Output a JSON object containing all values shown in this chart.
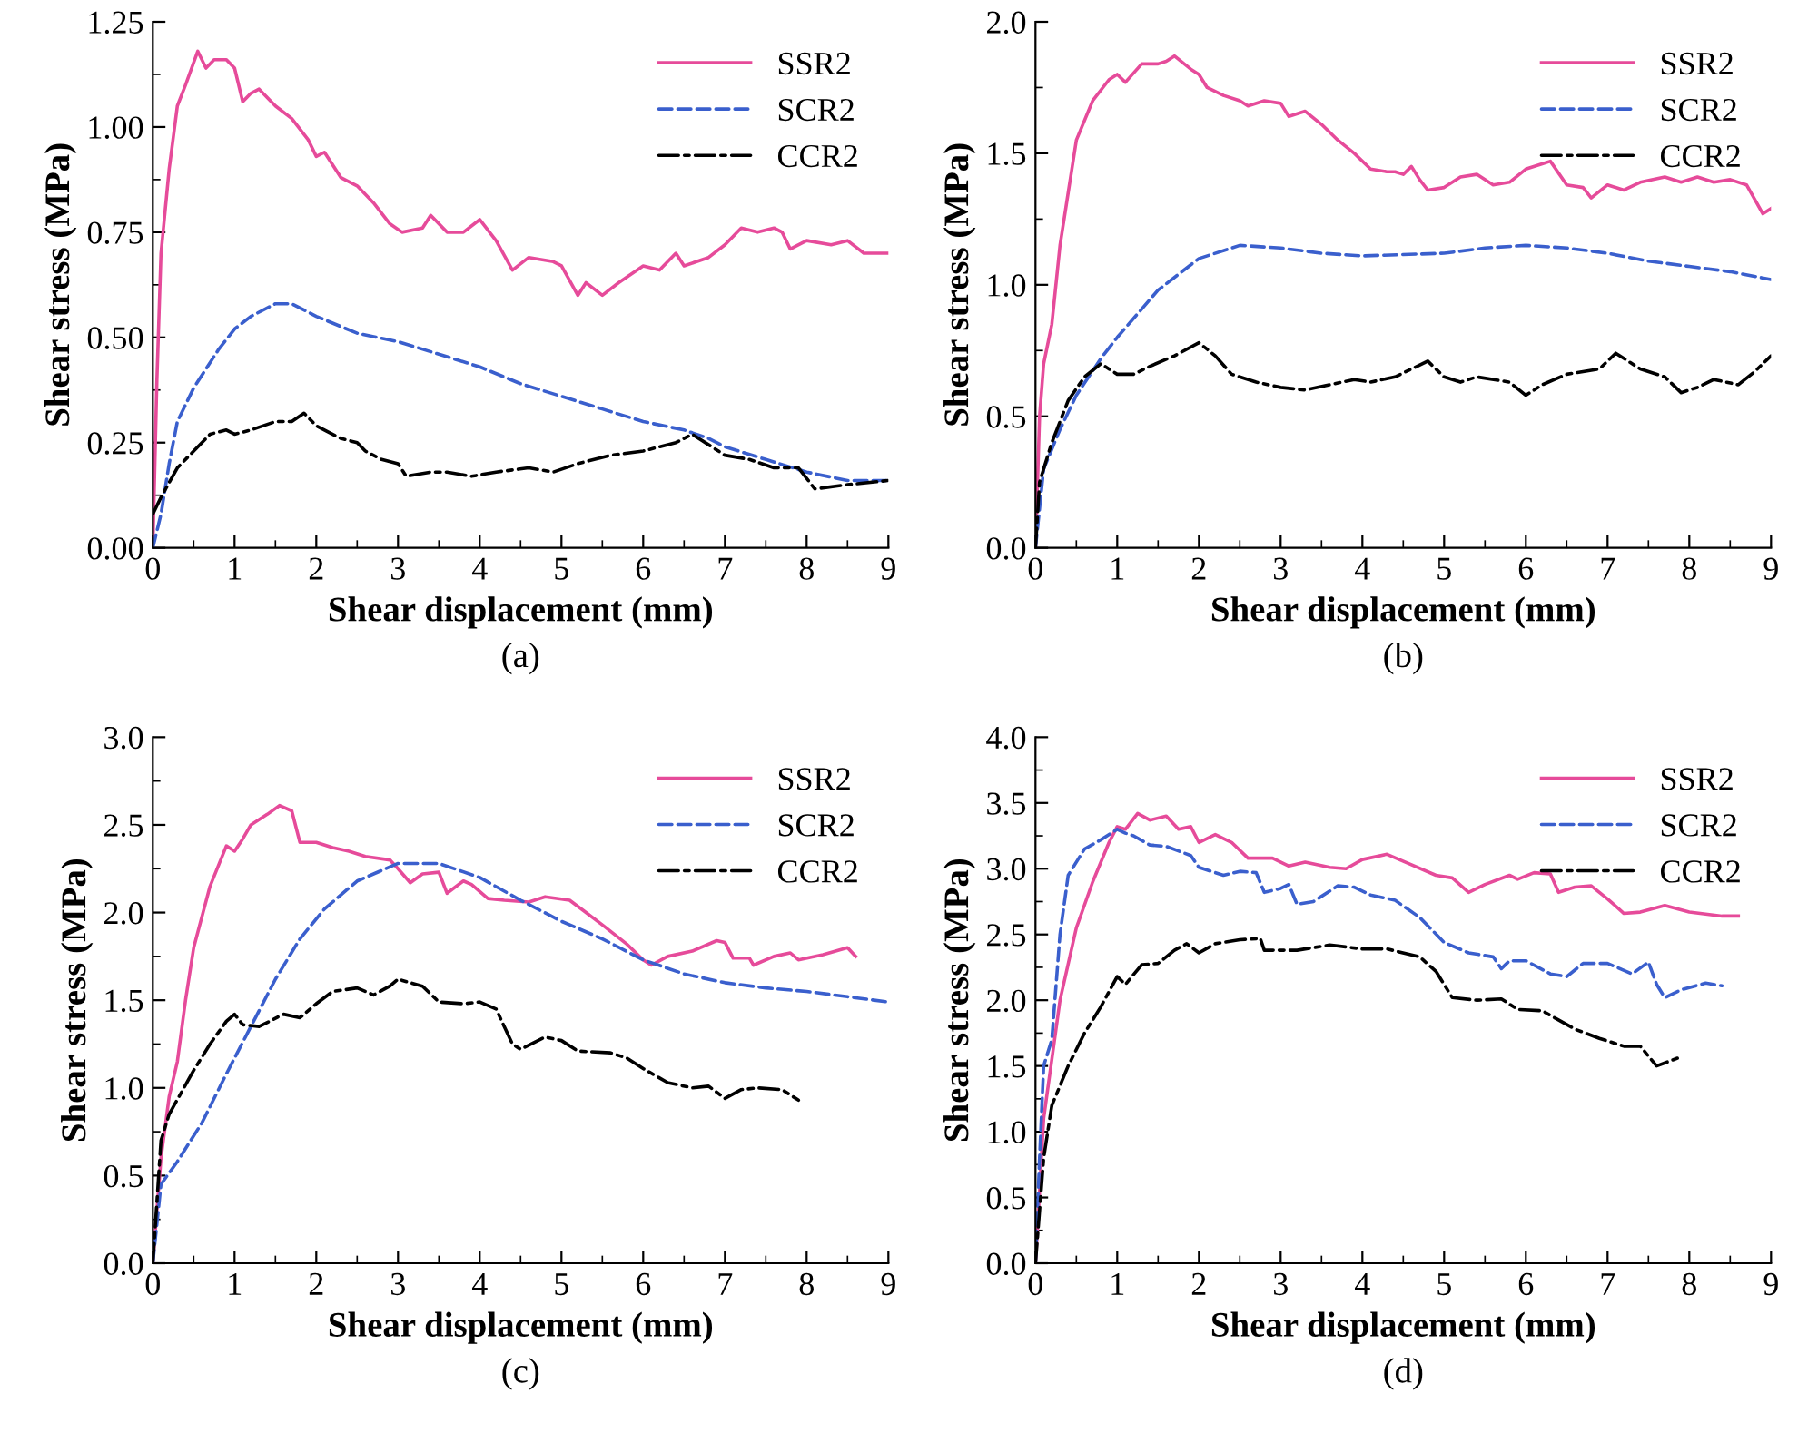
{
  "chart_data": [
    {
      "type": "line",
      "xlabel": "Shear displacement (mm)",
      "ylabel": "Shear stress (MPa)",
      "annotations": [
        "(a)"
      ],
      "legend": "top right",
      "grid": false,
      "xlim": [
        0,
        9
      ],
      "xticks": [
        0,
        1,
        2,
        3,
        4,
        5,
        6,
        7,
        8,
        9
      ],
      "ylim": [
        0,
        1.25
      ],
      "yticks": [
        {
          "value": 0,
          "label": "0.00"
        },
        {
          "value": 0.25,
          "label": "0.25"
        },
        {
          "value": 0.5,
          "label": "0.50"
        },
        {
          "value": 0.75,
          "label": "0.75"
        },
        {
          "value": 1.0,
          "label": "1.00"
        },
        {
          "value": 1.25,
          "label": "1.25"
        }
      ],
      "series": [
        {
          "name": "SSR2",
          "color": "#e64b9a",
          "line_style": "solid",
          "x": [
            0,
            0.05,
            0.1,
            0.2,
            0.3,
            0.4,
            0.55,
            0.65,
            0.75,
            0.9,
            1.0,
            1.1,
            1.2,
            1.3,
            1.5,
            1.7,
            1.9,
            2.0,
            2.1,
            2.3,
            2.5,
            2.7,
            2.9,
            3.05,
            3.3,
            3.4,
            3.6,
            3.8,
            4.0,
            4.2,
            4.4,
            4.6,
            4.9,
            5.0,
            5.2,
            5.3,
            5.5,
            5.7,
            6.0,
            6.2,
            6.4,
            6.5,
            6.8,
            7.0,
            7.2,
            7.4,
            7.6,
            7.7,
            7.8,
            8.0,
            8.3,
            8.5,
            8.7,
            9.0
          ],
          "values": [
            0,
            0.4,
            0.7,
            0.9,
            1.05,
            1.1,
            1.18,
            1.14,
            1.16,
            1.16,
            1.14,
            1.06,
            1.08,
            1.09,
            1.05,
            1.02,
            0.97,
            0.93,
            0.94,
            0.88,
            0.86,
            0.82,
            0.77,
            0.75,
            0.76,
            0.79,
            0.75,
            0.75,
            0.78,
            0.73,
            0.66,
            0.69,
            0.68,
            0.67,
            0.6,
            0.63,
            0.6,
            0.63,
            0.67,
            0.66,
            0.7,
            0.67,
            0.69,
            0.72,
            0.76,
            0.75,
            0.76,
            0.75,
            0.71,
            0.73,
            0.72,
            0.73,
            0.7,
            0.7
          ]
        },
        {
          "name": "SCR2",
          "color": "#3a5fcd",
          "line_style": "dashed",
          "x": [
            0,
            0.1,
            0.2,
            0.3,
            0.5,
            0.8,
            1.0,
            1.2,
            1.5,
            1.7,
            2.0,
            2.5,
            3,
            3.5,
            4,
            4.5,
            5,
            5.5,
            6,
            6.5,
            6.8,
            7,
            7.5,
            8,
            8.5,
            9
          ],
          "values": [
            0,
            0.08,
            0.2,
            0.3,
            0.38,
            0.47,
            0.52,
            0.55,
            0.58,
            0.58,
            0.55,
            0.51,
            0.49,
            0.46,
            0.43,
            0.39,
            0.36,
            0.33,
            0.3,
            0.28,
            0.26,
            0.24,
            0.21,
            0.18,
            0.16,
            0.16
          ]
        },
        {
          "name": "CCR2",
          "color": "#000000",
          "line_style": "dashdot",
          "x": [
            0,
            0.1,
            0.3,
            0.5,
            0.7,
            0.9,
            1.0,
            1.2,
            1.5,
            1.7,
            1.85,
            2.0,
            2.3,
            2.5,
            2.6,
            2.8,
            3.0,
            3.1,
            3.4,
            3.6,
            3.9,
            4.2,
            4.6,
            4.9,
            5.2,
            5.6,
            6.0,
            6.4,
            6.6,
            7.0,
            7.3,
            7.6,
            7.9,
            8.1,
            8.5,
            9.0
          ],
          "values": [
            0.08,
            0.12,
            0.19,
            0.23,
            0.27,
            0.28,
            0.27,
            0.28,
            0.3,
            0.3,
            0.32,
            0.29,
            0.26,
            0.25,
            0.23,
            0.21,
            0.2,
            0.17,
            0.18,
            0.18,
            0.17,
            0.18,
            0.19,
            0.18,
            0.2,
            0.22,
            0.23,
            0.25,
            0.27,
            0.22,
            0.21,
            0.19,
            0.19,
            0.14,
            0.15,
            0.16
          ]
        }
      ]
    },
    {
      "type": "line",
      "xlabel": "Shear displacement (mm)",
      "ylabel": "Shear stress (MPa)",
      "annotations": [
        "(b)"
      ],
      "legend": "top right",
      "grid": false,
      "xlim": [
        0,
        9
      ],
      "xticks": [
        0,
        1,
        2,
        3,
        4,
        5,
        6,
        7,
        8,
        9
      ],
      "ylim": [
        0,
        2.0
      ],
      "yticks": [
        {
          "value": 0,
          "label": "0.0"
        },
        0.5,
        {
          "value": 1.0,
          "label": "1.0"
        },
        1.5,
        {
          "value": 2.0,
          "label": "2.0"
        }
      ],
      "series": [
        {
          "name": "SSR2",
          "color": "#e64b9a",
          "line_style": "solid",
          "x": [
            0,
            0.05,
            0.1,
            0.2,
            0.3,
            0.4,
            0.5,
            0.7,
            0.9,
            1.0,
            1.1,
            1.3,
            1.5,
            1.6,
            1.7,
            1.9,
            2.0,
            2.1,
            2.3,
            2.5,
            2.6,
            2.8,
            3.0,
            3.1,
            3.3,
            3.5,
            3.7,
            3.9,
            4.1,
            4.3,
            4.4,
            4.5,
            4.6,
            4.7,
            4.8,
            5.0,
            5.2,
            5.4,
            5.6,
            5.8,
            6.0,
            6.2,
            6.3,
            6.5,
            6.7,
            6.8,
            7.0,
            7.2,
            7.4,
            7.7,
            7.9,
            8.1,
            8.3,
            8.5,
            8.7,
            8.9,
            9.0
          ],
          "values": [
            0,
            0.5,
            0.7,
            0.85,
            1.15,
            1.35,
            1.55,
            1.7,
            1.78,
            1.8,
            1.77,
            1.84,
            1.84,
            1.85,
            1.87,
            1.82,
            1.8,
            1.75,
            1.72,
            1.7,
            1.68,
            1.7,
            1.69,
            1.64,
            1.66,
            1.61,
            1.55,
            1.5,
            1.44,
            1.43,
            1.43,
            1.42,
            1.45,
            1.4,
            1.36,
            1.37,
            1.41,
            1.42,
            1.38,
            1.39,
            1.44,
            1.46,
            1.47,
            1.38,
            1.37,
            1.33,
            1.38,
            1.36,
            1.39,
            1.41,
            1.39,
            1.41,
            1.39,
            1.4,
            1.38,
            1.27,
            1.29
          ]
        },
        {
          "name": "SCR2",
          "color": "#3a5fcd",
          "line_style": "dashed",
          "x": [
            0,
            0.1,
            0.3,
            0.5,
            0.8,
            1.0,
            1.5,
            2.0,
            2.5,
            3.0,
            3.5,
            4.0,
            5.0,
            5.5,
            6.0,
            6.5,
            7.0,
            7.5,
            8.0,
            8.5,
            9.0
          ],
          "values": [
            0,
            0.3,
            0.45,
            0.58,
            0.72,
            0.8,
            0.98,
            1.1,
            1.15,
            1.14,
            1.12,
            1.11,
            1.12,
            1.14,
            1.15,
            1.14,
            1.12,
            1.09,
            1.07,
            1.05,
            1.02
          ]
        },
        {
          "name": "CCR2",
          "color": "#000000",
          "line_style": "dashdot",
          "x": [
            0,
            0.05,
            0.2,
            0.4,
            0.6,
            0.8,
            1.0,
            1.2,
            1.4,
            1.7,
            2.0,
            2.2,
            2.4,
            2.7,
            3.0,
            3.3,
            3.6,
            3.9,
            4.1,
            4.4,
            4.8,
            5.0,
            5.2,
            5.4,
            5.8,
            6.0,
            6.2,
            6.5,
            6.9,
            7.1,
            7.4,
            7.7,
            7.9,
            8.1,
            8.3,
            8.6,
            8.8,
            9.0
          ],
          "values": [
            0,
            0.25,
            0.4,
            0.56,
            0.65,
            0.7,
            0.66,
            0.66,
            0.69,
            0.73,
            0.78,
            0.73,
            0.66,
            0.63,
            0.61,
            0.6,
            0.62,
            0.64,
            0.63,
            0.65,
            0.71,
            0.65,
            0.63,
            0.65,
            0.63,
            0.58,
            0.62,
            0.66,
            0.68,
            0.74,
            0.68,
            0.65,
            0.59,
            0.61,
            0.64,
            0.62,
            0.67,
            0.73
          ]
        }
      ]
    },
    {
      "type": "line",
      "xlabel": "Shear displacement (mm)",
      "ylabel": "Shear stress (MPa)",
      "annotations": [
        "(c)"
      ],
      "legend": "top right",
      "grid": false,
      "xlim": [
        0,
        9
      ],
      "xticks": [
        0,
        1,
        2,
        3,
        4,
        5,
        6,
        7,
        8,
        9
      ],
      "ylim": [
        0,
        3.0
      ],
      "yticks": [
        {
          "value": 0,
          "label": "0.0"
        },
        0.5,
        {
          "value": 1.0,
          "label": "1.0"
        },
        1.5,
        {
          "value": 2.0,
          "label": "2.0"
        },
        2.5,
        {
          "value": 3.0,
          "label": "3.0"
        }
      ],
      "series": [
        {
          "name": "SSR2",
          "color": "#e64b9a",
          "line_style": "solid",
          "x": [
            0,
            0.1,
            0.2,
            0.3,
            0.4,
            0.5,
            0.7,
            0.9,
            1.0,
            1.1,
            1.2,
            1.4,
            1.55,
            1.7,
            1.8,
            2.0,
            2.2,
            2.4,
            2.6,
            2.9,
            3.0,
            3.15,
            3.3,
            3.5,
            3.6,
            3.8,
            3.9,
            4.1,
            4.3,
            4.6,
            4.8,
            5.1,
            5.3,
            5.5,
            5.8,
            6.0,
            6.1,
            6.3,
            6.6,
            6.9,
            7.0,
            7.1,
            7.3,
            7.35,
            7.6,
            7.8,
            7.9,
            8.2,
            8.5,
            8.6
          ],
          "values": [
            0,
            0.6,
            0.95,
            1.15,
            1.5,
            1.8,
            2.15,
            2.38,
            2.35,
            2.42,
            2.5,
            2.56,
            2.61,
            2.58,
            2.4,
            2.4,
            2.37,
            2.35,
            2.32,
            2.3,
            2.25,
            2.17,
            2.22,
            2.23,
            2.11,
            2.18,
            2.16,
            2.08,
            2.07,
            2.06,
            2.09,
            2.07,
            2.0,
            1.93,
            1.82,
            1.73,
            1.7,
            1.75,
            1.78,
            1.84,
            1.83,
            1.74,
            1.74,
            1.7,
            1.75,
            1.77,
            1.73,
            1.76,
            1.8,
            1.75
          ]
        },
        {
          "name": "SCR2",
          "color": "#3a5fcd",
          "line_style": "dashed",
          "x": [
            0,
            0.1,
            0.3,
            0.6,
            0.9,
            1.2,
            1.5,
            1.8,
            2.1,
            2.5,
            3.0,
            3.5,
            4.0,
            4.5,
            5.0,
            5.5,
            6.0,
            6.5,
            7.0,
            7.5,
            8.0,
            8.5,
            9.0
          ],
          "values": [
            0,
            0.45,
            0.58,
            0.8,
            1.08,
            1.35,
            1.62,
            1.85,
            2.02,
            2.18,
            2.28,
            2.28,
            2.2,
            2.07,
            1.95,
            1.85,
            1.73,
            1.65,
            1.6,
            1.57,
            1.55,
            1.52,
            1.49
          ]
        },
        {
          "name": "CCR2",
          "color": "#000000",
          "line_style": "dashdot",
          "x": [
            0,
            0.1,
            0.2,
            0.5,
            0.7,
            0.9,
            1.0,
            1.1,
            1.3,
            1.6,
            1.8,
            2.0,
            2.2,
            2.5,
            2.7,
            2.9,
            3.0,
            3.3,
            3.5,
            3.8,
            4.0,
            4.2,
            4.4,
            4.5,
            4.8,
            5.0,
            5.2,
            5.6,
            5.8,
            6.0,
            6.3,
            6.6,
            6.8,
            7.0,
            7.2,
            7.4,
            7.7,
            7.9
          ],
          "values": [
            0,
            0.7,
            0.85,
            1.1,
            1.25,
            1.38,
            1.42,
            1.36,
            1.35,
            1.42,
            1.4,
            1.48,
            1.55,
            1.57,
            1.53,
            1.58,
            1.62,
            1.58,
            1.49,
            1.48,
            1.49,
            1.45,
            1.25,
            1.22,
            1.29,
            1.27,
            1.21,
            1.2,
            1.17,
            1.11,
            1.03,
            1.0,
            1.01,
            0.94,
            0.99,
            1.0,
            0.99,
            0.93
          ]
        }
      ]
    },
    {
      "type": "line",
      "xlabel": "Shear displacement (mm)",
      "ylabel": "Shear stress (MPa)",
      "annotations": [
        "(d)"
      ],
      "legend": "top right",
      "grid": false,
      "xlim": [
        0,
        9
      ],
      "xticks": [
        0,
        1,
        2,
        3,
        4,
        5,
        6,
        7,
        8,
        9
      ],
      "ylim": [
        0,
        4.0
      ],
      "yticks": [
        {
          "value": 0,
          "label": "0.0"
        },
        0.5,
        {
          "value": 1.0,
          "label": "1.0"
        },
        1.5,
        {
          "value": 2.0,
          "label": "2.0"
        },
        2.5,
        {
          "value": 3.0,
          "label": "3.0"
        },
        3.5,
        {
          "value": 4.0,
          "label": "4.0"
        }
      ],
      "series": [
        {
          "name": "SSR2",
          "color": "#e64b9a",
          "line_style": "solid",
          "x": [
            0,
            0.1,
            0.3,
            0.5,
            0.7,
            0.9,
            1.0,
            1.1,
            1.25,
            1.4,
            1.6,
            1.75,
            1.9,
            2.0,
            2.2,
            2.4,
            2.6,
            2.9,
            3.1,
            3.3,
            3.6,
            3.8,
            4.0,
            4.3,
            4.6,
            4.9,
            5.1,
            5.3,
            5.5,
            5.8,
            5.9,
            6.1,
            6.3,
            6.4,
            6.6,
            6.8,
            7.0,
            7.2,
            7.4,
            7.7,
            8.0,
            8.4,
            8.6
          ],
          "values": [
            0,
            1.1,
            2.0,
            2.55,
            2.9,
            3.2,
            3.32,
            3.3,
            3.42,
            3.37,
            3.4,
            3.3,
            3.32,
            3.2,
            3.26,
            3.2,
            3.08,
            3.08,
            3.02,
            3.05,
            3.01,
            3.0,
            3.07,
            3.11,
            3.03,
            2.95,
            2.93,
            2.82,
            2.88,
            2.95,
            2.92,
            2.97,
            2.96,
            2.82,
            2.86,
            2.87,
            2.77,
            2.66,
            2.67,
            2.72,
            2.67,
            2.64,
            2.64
          ]
        },
        {
          "name": "SCR2",
          "color": "#3a5fcd",
          "line_style": "dashed",
          "x": [
            0,
            0.05,
            0.1,
            0.2,
            0.3,
            0.4,
            0.6,
            0.8,
            1.0,
            1.1,
            1.2,
            1.4,
            1.6,
            1.9,
            2.0,
            2.3,
            2.5,
            2.7,
            2.8,
            3.0,
            3.1,
            3.2,
            3.4,
            3.7,
            3.9,
            4.1,
            4.4,
            4.7,
            5.0,
            5.3,
            5.6,
            5.7,
            5.8,
            6.0,
            6.3,
            6.5,
            6.7,
            7.0,
            7.3,
            7.5,
            7.6,
            7.7,
            7.9,
            8.2,
            8.4
          ],
          "values": [
            0,
            0.8,
            1.5,
            1.7,
            2.5,
            2.95,
            3.15,
            3.22,
            3.3,
            3.27,
            3.25,
            3.18,
            3.17,
            3.1,
            3.01,
            2.95,
            2.98,
            2.97,
            2.82,
            2.85,
            2.88,
            2.73,
            2.75,
            2.87,
            2.86,
            2.8,
            2.76,
            2.63,
            2.44,
            2.36,
            2.33,
            2.24,
            2.3,
            2.3,
            2.2,
            2.18,
            2.28,
            2.28,
            2.2,
            2.29,
            2.12,
            2.02,
            2.08,
            2.13,
            2.11
          ]
        },
        {
          "name": "CCR2",
          "color": "#000000",
          "line_style": "dashdot",
          "x": [
            0,
            0.1,
            0.2,
            0.4,
            0.6,
            0.8,
            1.0,
            1.1,
            1.3,
            1.5,
            1.7,
            1.85,
            2.0,
            2.2,
            2.5,
            2.75,
            2.8,
            3.2,
            3.6,
            4.0,
            4.3,
            4.7,
            4.9,
            5.1,
            5.4,
            5.7,
            5.9,
            6.2,
            6.6,
            6.9,
            7.2,
            7.4,
            7.6,
            7.9
          ],
          "values": [
            0,
            0.8,
            1.2,
            1.5,
            1.75,
            1.95,
            2.18,
            2.12,
            2.27,
            2.28,
            2.38,
            2.43,
            2.36,
            2.43,
            2.46,
            2.47,
            2.38,
            2.38,
            2.42,
            2.39,
            2.39,
            2.33,
            2.22,
            2.02,
            2.0,
            2.01,
            1.93,
            1.92,
            1.78,
            1.71,
            1.65,
            1.65,
            1.5,
            1.57
          ]
        }
      ]
    }
  ]
}
